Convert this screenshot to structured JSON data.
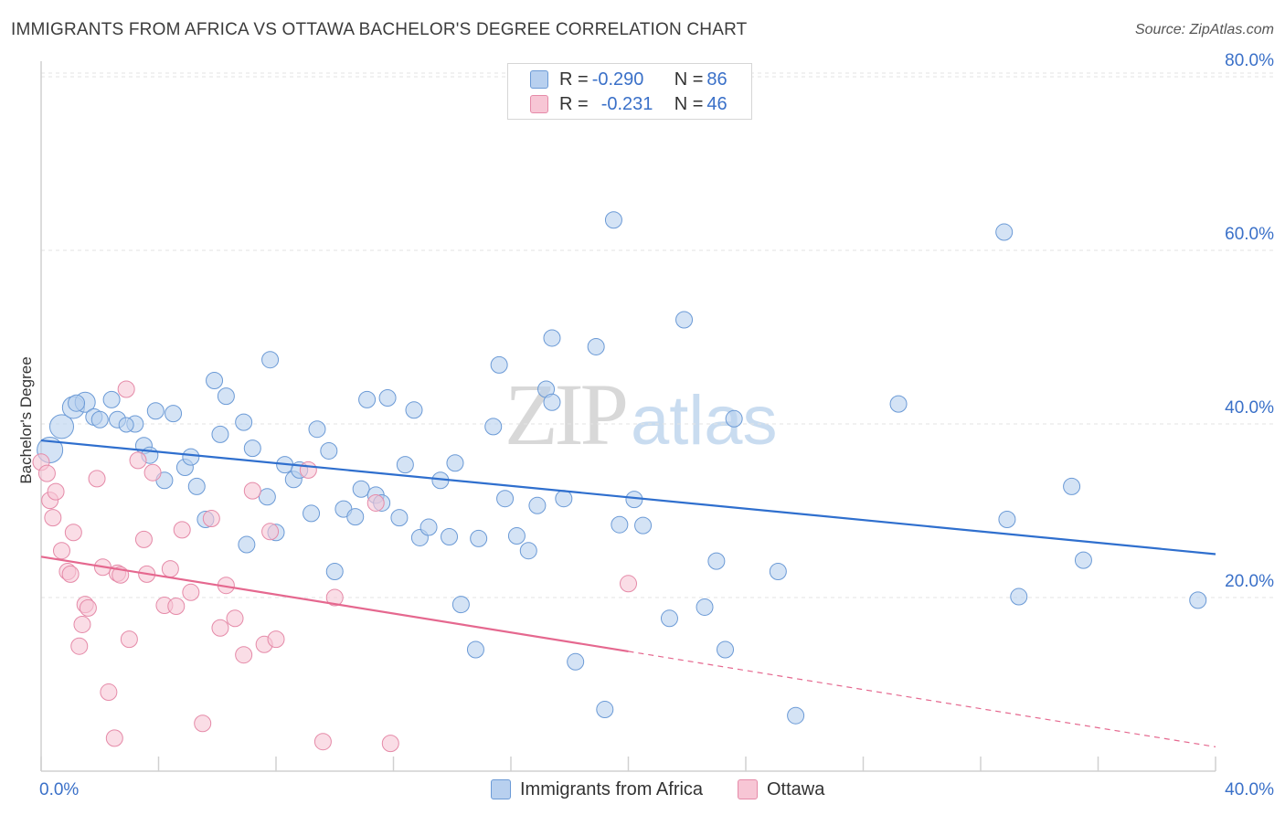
{
  "header": {
    "title": "IMMIGRANTS FROM AFRICA VS OTTAWA BACHELOR'S DEGREE CORRELATION CHART",
    "source": "Source: ZipAtlas.com"
  },
  "watermark": {
    "zip": "ZIP",
    "atlas": "atlas"
  },
  "legend": {
    "series1": {
      "r_label": "R = ",
      "r_value": "-0.290",
      "n_label": "N = ",
      "n_value": "86"
    },
    "series2": {
      "r_label": "R = ",
      "r_value": "-0.231",
      "n_label": "N = ",
      "n_value": "46"
    }
  },
  "bottom_legend": {
    "series1": "Immigrants from Africa",
    "series2": "Ottawa"
  },
  "colors": {
    "blue_fill": "#b8d0ef",
    "blue_stroke": "#6b9ad6",
    "blue_line": "#2f6fce",
    "pink_fill": "#f7c6d5",
    "pink_stroke": "#e58aa8",
    "pink_line": "#e5688f",
    "axis_text": "#3a70c8",
    "grid": "#e3e3e3"
  },
  "chart_data": {
    "type": "scatter",
    "title": "IMMIGRANTS FROM AFRICA VS OTTAWA BACHELOR'S DEGREE CORRELATION CHART",
    "xlabel": "",
    "ylabel": "Bachelor's Degree",
    "xlim": [
      0,
      40
    ],
    "ylim": [
      0,
      85
    ],
    "x_tick_labels": [
      "0.0%",
      "40.0%"
    ],
    "y_ticks": [
      20,
      40,
      60,
      80
    ],
    "y_tick_labels": [
      "20.0%",
      "40.0%",
      "60.0%",
      "80.0%"
    ],
    "grid": true,
    "legend_position": "top-center",
    "series": [
      {
        "name": "Immigrants from Africa",
        "r": -0.29,
        "n": 86,
        "trend": {
          "x": [
            0,
            40
          ],
          "y": [
            38.1,
            25.0
          ]
        },
        "points": [
          [
            0.3,
            37.0,
            14
          ],
          [
            0.7,
            39.7,
            13
          ],
          [
            1.1,
            41.9,
            12
          ],
          [
            1.5,
            42.5,
            11
          ],
          [
            1.2,
            42.4,
            9
          ],
          [
            1.8,
            40.8,
            9
          ],
          [
            2.4,
            42.8,
            9
          ],
          [
            2.0,
            40.5,
            9
          ],
          [
            2.6,
            40.5,
            9
          ],
          [
            3.2,
            40.0,
            9
          ],
          [
            2.9,
            39.9,
            8
          ],
          [
            3.9,
            41.5,
            9
          ],
          [
            4.5,
            41.2,
            9
          ],
          [
            3.5,
            37.5,
            9
          ],
          [
            3.7,
            36.4,
            9
          ],
          [
            4.2,
            33.5,
            9
          ],
          [
            4.9,
            35.0,
            9
          ],
          [
            5.1,
            36.2,
            9
          ],
          [
            5.3,
            32.8,
            9
          ],
          [
            5.6,
            29.0,
            9
          ],
          [
            5.9,
            45.0,
            9
          ],
          [
            6.1,
            38.8,
            9
          ],
          [
            6.3,
            43.2,
            9
          ],
          [
            6.9,
            40.2,
            9
          ],
          [
            7.2,
            37.2,
            9
          ],
          [
            7.7,
            31.6,
            9
          ],
          [
            7.0,
            26.1,
            9
          ],
          [
            7.8,
            47.4,
            9
          ],
          [
            8.0,
            27.5,
            9
          ],
          [
            8.3,
            35.3,
            9
          ],
          [
            8.6,
            33.6,
            9
          ],
          [
            8.8,
            34.7,
            9
          ],
          [
            9.2,
            29.7,
            9
          ],
          [
            9.4,
            39.4,
            9
          ],
          [
            9.8,
            36.9,
            9
          ],
          [
            10.0,
            23.0,
            9
          ],
          [
            10.3,
            30.2,
            9
          ],
          [
            10.7,
            29.3,
            9
          ],
          [
            10.9,
            32.5,
            9
          ],
          [
            11.1,
            42.8,
            9
          ],
          [
            11.4,
            31.8,
            9
          ],
          [
            11.6,
            30.9,
            9
          ],
          [
            11.8,
            43.0,
            9
          ],
          [
            12.2,
            29.2,
            9
          ],
          [
            12.4,
            35.3,
            9
          ],
          [
            12.7,
            41.6,
            9
          ],
          [
            12.9,
            26.9,
            9
          ],
          [
            13.2,
            28.1,
            9
          ],
          [
            13.6,
            33.5,
            9
          ],
          [
            13.9,
            27.0,
            9
          ],
          [
            14.1,
            35.5,
            9
          ],
          [
            14.3,
            19.2,
            9
          ],
          [
            14.8,
            14.0,
            9
          ],
          [
            14.9,
            26.8,
            9
          ],
          [
            15.4,
            39.7,
            9
          ],
          [
            15.6,
            46.8,
            9
          ],
          [
            15.8,
            31.4,
            9
          ],
          [
            16.2,
            27.1,
            9
          ],
          [
            16.6,
            25.4,
            9
          ],
          [
            16.9,
            30.6,
            9
          ],
          [
            17.2,
            44.0,
            9
          ],
          [
            17.4,
            42.5,
            9
          ],
          [
            17.4,
            49.9,
            9
          ],
          [
            17.8,
            31.4,
            9
          ],
          [
            18.2,
            12.6,
            9
          ],
          [
            18.9,
            48.9,
            9
          ],
          [
            19.2,
            7.1,
            9
          ],
          [
            19.5,
            63.5,
            9
          ],
          [
            19.7,
            28.4,
            9
          ],
          [
            20.2,
            31.3,
            9
          ],
          [
            20.5,
            28.3,
            9
          ],
          [
            21.4,
            17.6,
            9
          ],
          [
            21.9,
            52.0,
            9
          ],
          [
            22.6,
            18.9,
            9
          ],
          [
            23.0,
            24.2,
            9
          ],
          [
            23.3,
            14.0,
            9
          ],
          [
            23.6,
            40.6,
            9
          ],
          [
            25.1,
            23.0,
            9
          ],
          [
            25.7,
            6.4,
            9
          ],
          [
            29.2,
            42.3,
            9
          ],
          [
            32.8,
            62.1,
            9
          ],
          [
            32.9,
            29.0,
            9
          ],
          [
            33.3,
            20.1,
            9
          ],
          [
            35.1,
            32.8,
            9
          ],
          [
            35.5,
            24.3,
            9
          ],
          [
            39.4,
            19.7,
            9
          ]
        ]
      },
      {
        "name": "Ottawa",
        "r": -0.231,
        "n": 46,
        "trend": {
          "x": [
            0,
            20
          ],
          "y": [
            24.7,
            13.8
          ]
        },
        "trend_extension": {
          "x": [
            20,
            40
          ],
          "y": [
            13.8,
            2.8
          ]
        },
        "points": [
          [
            0.0,
            35.6,
            9
          ],
          [
            0.2,
            34.3,
            9
          ],
          [
            0.3,
            31.2,
            9
          ],
          [
            0.5,
            32.2,
            9
          ],
          [
            0.7,
            25.4,
            9
          ],
          [
            0.4,
            29.2,
            9
          ],
          [
            0.9,
            23.0,
            9
          ],
          [
            1.1,
            27.5,
            9
          ],
          [
            1.0,
            22.7,
            9
          ],
          [
            1.3,
            14.4,
            9
          ],
          [
            1.5,
            19.2,
            9
          ],
          [
            1.6,
            18.8,
            9
          ],
          [
            1.9,
            33.7,
            9
          ],
          [
            2.1,
            23.5,
            9
          ],
          [
            2.3,
            9.1,
            9
          ],
          [
            2.6,
            22.8,
            9
          ],
          [
            2.5,
            3.8,
            9
          ],
          [
            2.7,
            22.6,
            9
          ],
          [
            3.0,
            15.2,
            9
          ],
          [
            3.3,
            35.8,
            9
          ],
          [
            3.5,
            26.7,
            9
          ],
          [
            3.6,
            22.7,
            9
          ],
          [
            3.8,
            34.4,
            9
          ],
          [
            4.2,
            19.1,
            9
          ],
          [
            4.4,
            23.3,
            9
          ],
          [
            4.6,
            19.0,
            9
          ],
          [
            4.8,
            27.8,
            9
          ],
          [
            5.1,
            20.6,
            9
          ],
          [
            5.5,
            5.5,
            9
          ],
          [
            5.8,
            29.1,
            9
          ],
          [
            6.1,
            16.5,
            9
          ],
          [
            6.3,
            21.4,
            9
          ],
          [
            6.6,
            17.6,
            9
          ],
          [
            6.9,
            13.4,
            9
          ],
          [
            7.2,
            32.3,
            9
          ],
          [
            7.6,
            14.6,
            9
          ],
          [
            7.8,
            27.6,
            9
          ],
          [
            8.0,
            15.2,
            9
          ],
          [
            2.9,
            44.0,
            9
          ],
          [
            9.1,
            34.7,
            9
          ],
          [
            9.6,
            3.4,
            9
          ],
          [
            10.0,
            20.0,
            9
          ],
          [
            11.4,
            30.9,
            9
          ],
          [
            11.9,
            3.2,
            9
          ],
          [
            20.0,
            21.6,
            9
          ],
          [
            1.4,
            16.9,
            9
          ]
        ]
      }
    ]
  }
}
